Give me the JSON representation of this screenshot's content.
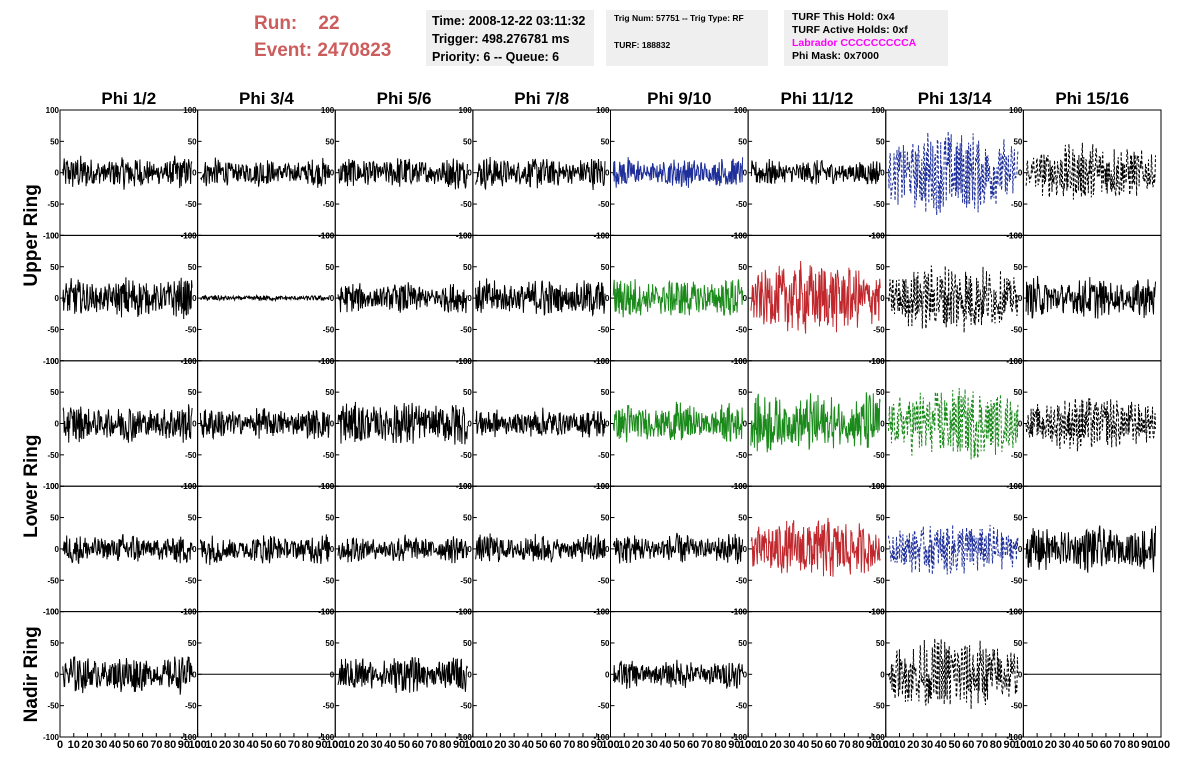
{
  "header": {
    "run_label": "Run:",
    "run_value": "22",
    "event_label": "Event:",
    "event_value": "2470823"
  },
  "info_box_1": {
    "time": "Time: 2008-12-22 03:11:32",
    "trigger": "Trigger: 498.276781 ms",
    "priority": "Priority: 6 -- Queue: 6"
  },
  "info_box_2": {
    "trig_num": "Trig Num: 57751 -- Trig Type: RF",
    "turf": "TURF: 188832"
  },
  "info_box_3": {
    "this_hold": "TURF This Hold: 0x4",
    "active_holds": "TURF Active Holds: 0xf",
    "labrador": "Labrador CCCCCCCCCA",
    "phi_mask": "Phi Mask: 0x7000"
  },
  "colors": {
    "header_red": "#cd5c5c",
    "trace_black": "#000000",
    "trace_blue": "#1f2f9a",
    "trace_green": "#1a8a1a",
    "trace_red": "#c0282d",
    "labrador_magenta": "#ff00ff"
  },
  "chart_data": {
    "type": "line",
    "columns": [
      "Phi 1/2",
      "Phi 3/4",
      "Phi 5/6",
      "Phi 7/8",
      "Phi 9/10",
      "Phi 11/12",
      "Phi 13/14",
      "Phi 15/16"
    ],
    "row_groups": [
      "Upper Ring",
      "Lower Ring",
      "Nadir Ring"
    ],
    "rows": 5,
    "xlim": [
      0,
      100
    ],
    "ylim": [
      -100,
      100
    ],
    "xticks": [
      0,
      10,
      20,
      30,
      40,
      50,
      60,
      70,
      80,
      90,
      100
    ],
    "yticks": [
      -100,
      -50,
      0,
      50,
      100
    ],
    "panels": [
      [
        {
          "color": "black",
          "style": "solid",
          "amplitude": 18
        },
        {
          "color": "black",
          "style": "solid",
          "amplitude": 15
        },
        {
          "color": "black",
          "style": "solid",
          "amplitude": 17
        },
        {
          "color": "black",
          "style": "solid",
          "amplitude": 17
        },
        {
          "color": "blue",
          "style": "solid",
          "amplitude": 17
        },
        {
          "color": "black",
          "style": "solid",
          "amplitude": 14
        },
        {
          "color": "blue",
          "style": "dashed",
          "amplitude": 45
        },
        {
          "color": "black",
          "style": "dashed",
          "amplitude": 30
        }
      ],
      [
        {
          "color": "black",
          "style": "solid",
          "amplitude": 22
        },
        {
          "color": "black",
          "style": "solid",
          "amplitude": 3
        },
        {
          "color": "black",
          "style": "solid",
          "amplitude": 16
        },
        {
          "color": "black",
          "style": "solid",
          "amplitude": 20
        },
        {
          "color": "green",
          "style": "solid",
          "amplitude": 22
        },
        {
          "color": "red",
          "style": "solid",
          "amplitude": 38
        },
        {
          "color": "black",
          "style": "dashed",
          "amplitude": 35
        },
        {
          "color": "black",
          "style": "solid",
          "amplitude": 22
        }
      ],
      [
        {
          "color": "black",
          "style": "solid",
          "amplitude": 20
        },
        {
          "color": "black",
          "style": "solid",
          "amplitude": 17
        },
        {
          "color": "black",
          "style": "solid",
          "amplitude": 25
        },
        {
          "color": "black",
          "style": "solid",
          "amplitude": 16
        },
        {
          "color": "green",
          "style": "solid",
          "amplitude": 22
        },
        {
          "color": "green",
          "style": "solid",
          "amplitude": 32
        },
        {
          "color": "green",
          "style": "dashed",
          "amplitude": 38
        },
        {
          "color": "black",
          "style": "dashed",
          "amplitude": 28
        }
      ],
      [
        {
          "color": "black",
          "style": "solid",
          "amplitude": 16
        },
        {
          "color": "black",
          "style": "solid",
          "amplitude": 16
        },
        {
          "color": "black",
          "style": "solid",
          "amplitude": 15
        },
        {
          "color": "black",
          "style": "solid",
          "amplitude": 16
        },
        {
          "color": "black",
          "style": "solid",
          "amplitude": 16
        },
        {
          "color": "red",
          "style": "solid",
          "amplitude": 32
        },
        {
          "color": "blue",
          "style": "dashed",
          "amplitude": 28
        },
        {
          "color": "black",
          "style": "solid",
          "amplitude": 25
        }
      ],
      [
        {
          "color": "black",
          "style": "solid",
          "amplitude": 20
        },
        {
          "color": "black",
          "style": "flat",
          "amplitude": 0
        },
        {
          "color": "black",
          "style": "solid",
          "amplitude": 20
        },
        {
          "color": "none",
          "style": "none",
          "amplitude": 0
        },
        {
          "color": "black",
          "style": "solid",
          "amplitude": 15
        },
        {
          "color": "none",
          "style": "none",
          "amplitude": 0
        },
        {
          "color": "black",
          "style": "dashed",
          "amplitude": 38
        },
        {
          "color": "black",
          "style": "flat",
          "amplitude": 0
        }
      ]
    ]
  }
}
